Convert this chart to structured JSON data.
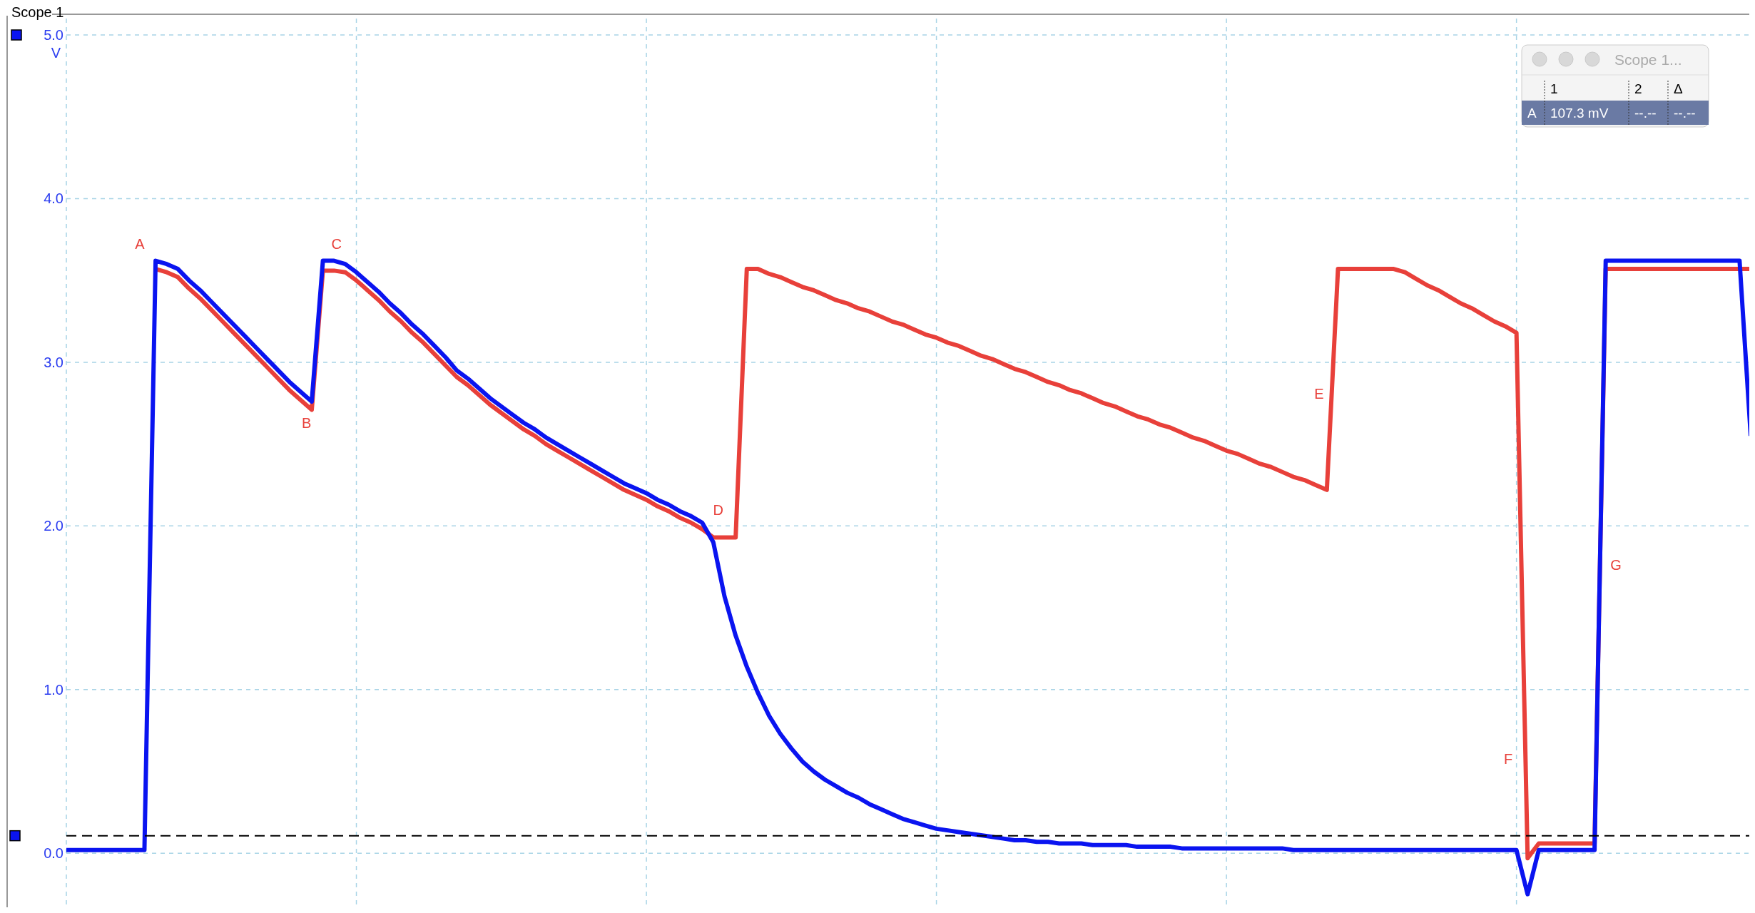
{
  "chart_data": {
    "type": "line",
    "title": "Scope 1",
    "ylabel": "V",
    "categories": [
      null,
      null,
      null,
      null,
      null,
      null,
      null,
      null,
      null,
      null,
      null,
      null,
      null,
      null,
      null,
      null,
      null,
      null,
      null,
      null,
      null,
      null,
      null,
      null,
      null,
      null,
      null,
      null,
      null,
      null,
      null,
      null,
      null,
      null,
      null,
      null,
      null,
      null,
      null,
      null,
      null,
      null,
      null,
      null,
      null,
      null,
      null,
      null,
      null,
      null,
      null,
      null,
      null,
      null,
      null,
      null,
      null,
      null,
      null,
      null,
      null,
      null,
      null,
      null,
      null,
      null,
      null,
      null,
      null,
      null,
      null,
      null,
      null,
      null,
      null,
      null,
      null,
      null,
      null,
      null,
      null,
      null,
      null,
      null,
      null,
      null,
      null,
      null,
      null,
      null,
      null,
      null,
      null,
      null,
      null,
      null,
      null,
      null,
      null,
      null,
      null,
      null,
      null,
      null,
      null,
      null,
      null,
      null,
      null,
      null,
      null,
      null,
      null,
      null,
      null,
      null,
      null,
      null,
      null,
      null,
      null,
      null,
      null,
      null,
      null,
      null,
      null,
      null,
      null,
      null,
      null,
      null,
      null,
      null,
      null,
      null,
      null,
      null,
      null,
      null,
      null,
      null,
      null,
      null,
      null,
      null,
      null,
      null,
      null,
      null,
      null,
      null
    ],
    "ylim": [
      -0.33,
      5.1
    ],
    "yticks": [
      {
        "value": 0,
        "label": "0.0"
      },
      {
        "value": 1,
        "label": "1.0"
      },
      {
        "value": 2,
        "label": "2.0"
      },
      {
        "value": 3,
        "label": "3.0"
      },
      {
        "value": 4,
        "label": "4.0"
      },
      {
        "value": 5,
        "label": "5.0"
      }
    ],
    "grid": true,
    "marker": "none",
    "line_style": "solid",
    "series": [
      {
        "color": "#e8403a",
        "values": [
          null,
          null,
          null,
          null,
          null,
          null,
          null,
          null,
          3.57,
          3.55,
          3.52,
          3.45,
          3.39,
          3.32,
          3.25,
          3.18,
          3.11,
          3.04,
          2.97,
          2.9,
          2.83,
          2.77,
          2.71,
          3.56,
          3.56,
          3.55,
          3.5,
          3.44,
          3.38,
          3.31,
          3.25,
          3.18,
          3.12,
          3.05,
          2.98,
          2.91,
          2.86,
          2.8,
          2.74,
          2.69,
          2.64,
          2.59,
          2.55,
          2.5,
          2.46,
          2.42,
          2.38,
          2.34,
          2.3,
          2.26,
          2.22,
          2.19,
          2.16,
          2.12,
          2.09,
          2.05,
          2.02,
          1.98,
          1.93,
          1.93,
          1.93,
          3.57,
          3.57,
          3.54,
          3.52,
          3.49,
          3.46,
          3.44,
          3.41,
          3.38,
          3.36,
          3.33,
          3.31,
          3.28,
          3.25,
          3.23,
          3.2,
          3.17,
          3.15,
          3.12,
          3.1,
          3.07,
          3.04,
          3.02,
          2.99,
          2.96,
          2.94,
          2.91,
          2.88,
          2.86,
          2.83,
          2.81,
          2.78,
          2.75,
          2.73,
          2.7,
          2.67,
          2.65,
          2.62,
          2.6,
          2.57,
          2.54,
          2.52,
          2.49,
          2.46,
          2.44,
          2.41,
          2.38,
          2.36,
          2.33,
          2.3,
          2.28,
          2.25,
          2.22,
          3.57,
          3.57,
          3.57,
          3.57,
          3.57,
          3.57,
          3.55,
          3.51,
          3.47,
          3.44,
          3.4,
          3.36,
          3.33,
          3.29,
          3.25,
          3.22,
          3.18,
          -0.03,
          0.06,
          0.06,
          0.06,
          0.06,
          0.06,
          0.06,
          3.57,
          3.57,
          3.57,
          3.57,
          3.57,
          3.57,
          3.57,
          3.57,
          3.57,
          3.57,
          3.57,
          3.57,
          3.57,
          3.57
        ]
      },
      {
        "color": "#0a14f0",
        "values": [
          0.02,
          0.02,
          0.02,
          0.02,
          0.02,
          0.02,
          0.02,
          0.02,
          3.62,
          3.6,
          3.57,
          3.5,
          3.44,
          3.37,
          3.3,
          3.23,
          3.16,
          3.09,
          3.02,
          2.95,
          2.88,
          2.82,
          2.76,
          3.62,
          3.62,
          3.6,
          3.55,
          3.49,
          3.43,
          3.36,
          3.3,
          3.23,
          3.17,
          3.1,
          3.03,
          2.95,
          2.9,
          2.84,
          2.78,
          2.73,
          2.68,
          2.63,
          2.59,
          2.54,
          2.5,
          2.46,
          2.42,
          2.38,
          2.34,
          2.3,
          2.26,
          2.23,
          2.2,
          2.16,
          2.13,
          2.09,
          2.06,
          2.02,
          1.9,
          1.57,
          1.33,
          1.14,
          0.98,
          0.84,
          0.73,
          0.64,
          0.56,
          0.5,
          0.45,
          0.41,
          0.37,
          0.34,
          0.3,
          0.27,
          0.24,
          0.21,
          0.19,
          0.17,
          0.15,
          0.14,
          0.13,
          0.12,
          0.11,
          0.1,
          0.09,
          0.08,
          0.08,
          0.07,
          0.07,
          0.06,
          0.06,
          0.06,
          0.05,
          0.05,
          0.05,
          0.05,
          0.04,
          0.04,
          0.04,
          0.04,
          0.03,
          0.03,
          0.03,
          0.03,
          0.03,
          0.03,
          0.03,
          0.03,
          0.03,
          0.03,
          0.02,
          0.02,
          0.02,
          0.02,
          0.02,
          0.02,
          0.02,
          0.02,
          0.02,
          0.02,
          0.02,
          0.02,
          0.02,
          0.02,
          0.02,
          0.02,
          0.02,
          0.02,
          0.02,
          0.02,
          0.02,
          -0.25,
          0.02,
          0.02,
          0.02,
          0.02,
          0.02,
          0.02,
          3.62,
          3.62,
          3.62,
          3.62,
          3.62,
          3.62,
          3.62,
          3.62,
          3.62,
          3.62,
          3.62,
          3.62,
          3.62,
          2.55
        ]
      }
    ],
    "ref_lines": [
      {
        "axis": "y",
        "value": 0.1073,
        "color": "#000000",
        "line_style": "dashed"
      }
    ],
    "annotations": [
      "A",
      "B",
      "C",
      "D",
      "E",
      "F",
      "G",
      "Scope 1...",
      "1",
      "2",
      "Δ",
      "A",
      "107.3 mV",
      "--.--",
      "--.--"
    ]
  }
}
